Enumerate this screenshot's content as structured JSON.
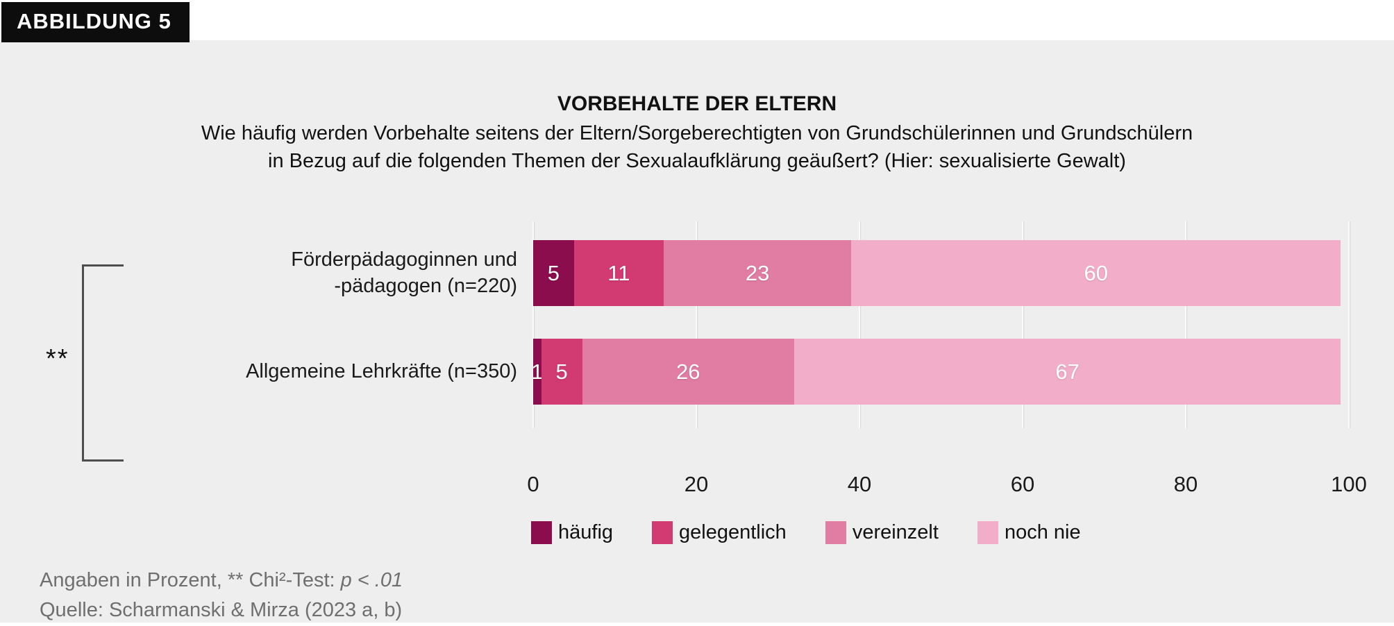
{
  "figure_tag": "ABBILDUNG 5",
  "title": "VORBEHALTE DER ELTERN",
  "subtitle_line1": "Wie häufig werden Vorbehalte seitens der Eltern/Sorgeberechtigten von Grundschülerinnen und Grundschülern",
  "subtitle_line2": "in Bezug auf die folgenden Themen der Sexualaufklärung geäußert? (Hier: sexualisierte Gewalt)",
  "significance_marker": "**",
  "colors": {
    "haeufig": "#8B0D4D",
    "gelegentlich": "#D23A72",
    "vereinzelt": "#E17CA2",
    "noch_nie": "#F2AEC8",
    "panel_bg": "#EEEEEE",
    "footnote_text": "#6F6F6F"
  },
  "chart_data": {
    "type": "bar",
    "orientation": "horizontal",
    "stacked": true,
    "title": "VORBEHALTE DER ELTERN",
    "categories": [
      "Förderpädagoginnen und -pädagogen (n=220)",
      "Allgemeine Lehrkräfte (n=350)"
    ],
    "series": [
      {
        "name": "häufig",
        "color": "#8B0D4D",
        "values": [
          5,
          1
        ]
      },
      {
        "name": "gelegentlich",
        "color": "#D23A72",
        "values": [
          11,
          5
        ]
      },
      {
        "name": "vereinzelt",
        "color": "#E17CA2",
        "values": [
          23,
          26
        ]
      },
      {
        "name": "noch nie",
        "color": "#F2AEC8",
        "values": [
          60,
          67
        ]
      }
    ],
    "xlim": [
      0,
      100
    ],
    "x_ticks": [
      0,
      20,
      40,
      60,
      80,
      100
    ],
    "grid": true,
    "legend_position": "bottom",
    "units": "percent"
  },
  "category_labels": [
    {
      "line1": "Förderpädagoginnen und",
      "line2": "-pädagogen (n=220)"
    },
    {
      "line1": "Allgemeine Lehrkräfte (n=350)",
      "line2": ""
    }
  ],
  "legend": [
    {
      "label": "häufig",
      "color": "#8B0D4D"
    },
    {
      "label": "gelegentlich",
      "color": "#D23A72"
    },
    {
      "label": "vereinzelt",
      "color": "#E17CA2"
    },
    {
      "label": "noch nie",
      "color": "#F2AEC8"
    }
  ],
  "footnote": {
    "line1_prefix": "Angaben in Prozent, ** Chi²-Test: ",
    "line1_italic": "p < .01",
    "line2": "Quelle: Scharmanski & Mirza (2023 a, b)"
  }
}
